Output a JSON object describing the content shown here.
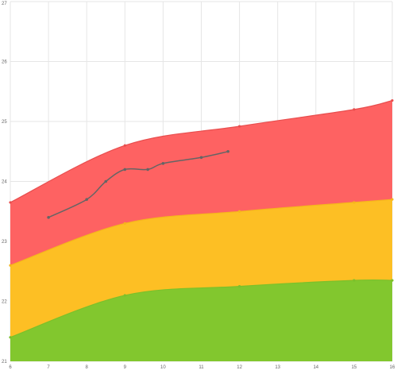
{
  "chart_data": {
    "type": "area",
    "title": "",
    "xlabel": "",
    "ylabel": "",
    "xlim": [
      6,
      16
    ],
    "ylim": [
      21,
      27
    ],
    "x_ticks": [
      6,
      7,
      8,
      9,
      10,
      11,
      12,
      13,
      14,
      15,
      16
    ],
    "y_ticks": [
      21,
      22,
      23,
      24,
      25,
      26,
      27
    ],
    "grid": true,
    "legend": "none",
    "bands": [
      {
        "color": "#82c72e",
        "line_color": "#7cc02a",
        "x": [
          6,
          9,
          12,
          15,
          16
        ],
        "values": [
          21.4,
          22.1,
          22.25,
          22.35,
          22.35
        ]
      },
      {
        "color": "#fdbf24",
        "line_color": "#f5b51c",
        "x": [
          6,
          9,
          12,
          15,
          16
        ],
        "values": [
          22.6,
          23.3,
          23.5,
          23.65,
          23.7
        ]
      },
      {
        "color": "#fe6262",
        "line_color": "#e84e4e",
        "x": [
          6,
          9,
          12,
          15,
          16
        ],
        "values": [
          23.65,
          24.6,
          24.92,
          25.2,
          25.35
        ]
      }
    ],
    "series": [
      {
        "color": "#656565",
        "x": [
          7,
          8,
          8.5,
          9,
          9.6,
          10,
          11,
          11.7
        ],
        "values": [
          23.4,
          23.7,
          24.0,
          24.2,
          24.2,
          24.3,
          24.4,
          24.5
        ]
      }
    ]
  }
}
